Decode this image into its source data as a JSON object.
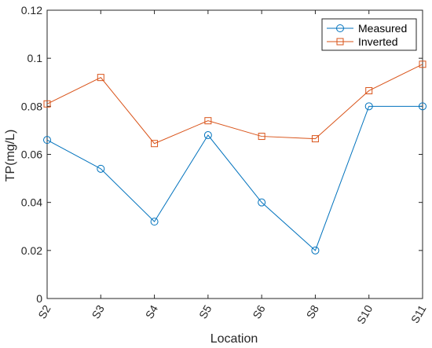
{
  "chart_data": {
    "type": "line",
    "title": "",
    "xlabel": "Location",
    "ylabel": "TP(mg/L)",
    "categories": [
      "S2",
      "S3",
      "S4",
      "S5",
      "S6",
      "S8",
      "S10",
      "S11"
    ],
    "ylim": [
      0,
      0.12
    ],
    "yticks": [
      "0",
      "0.02",
      "0.04",
      "0.06",
      "0.08",
      "0.1",
      "0.12"
    ],
    "grid": false,
    "legend_position": "top-right",
    "series": [
      {
        "name": "Measured",
        "color": "#0072BD",
        "marker": "circle",
        "values": [
          0.066,
          0.054,
          0.032,
          0.068,
          0.04,
          0.02,
          0.08,
          0.08
        ]
      },
      {
        "name": "Inverted",
        "color": "#D95319",
        "marker": "square",
        "values": [
          0.081,
          0.092,
          0.0645,
          0.074,
          0.0675,
          0.0665,
          0.0865,
          0.0975
        ]
      }
    ]
  }
}
